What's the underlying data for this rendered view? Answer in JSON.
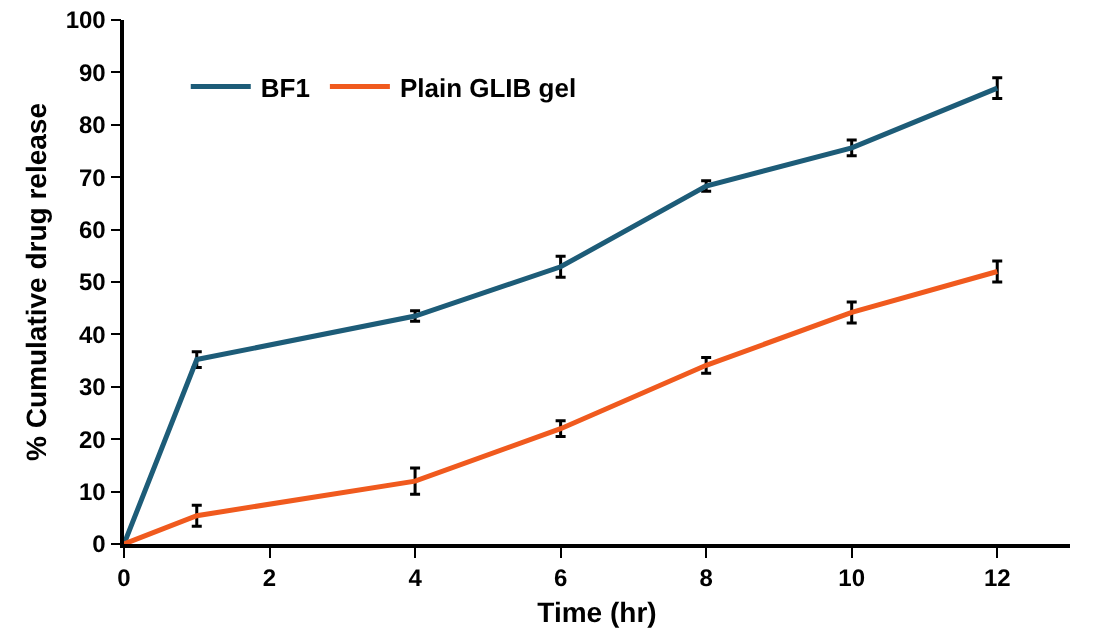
{
  "chart_data": {
    "type": "line",
    "xlabel": "Time (hr)",
    "ylabel": "% Cumulative drug release",
    "x": [
      0,
      1,
      4,
      6,
      8,
      10,
      12
    ],
    "series": [
      {
        "name": "BF1",
        "color": "#1d5c78",
        "values": [
          0,
          35.2,
          43.5,
          52.9,
          68.3,
          75.6,
          87
        ],
        "errors": [
          null,
          1.5,
          1,
          2,
          1,
          1.5,
          2
        ]
      },
      {
        "name": "Plain GLIB gel",
        "color": "#f05a1e",
        "values": [
          0,
          5.4,
          12,
          22,
          34.1,
          44.2,
          52
        ],
        "errors": [
          null,
          2,
          2.5,
          1.5,
          1.5,
          2,
          2
        ]
      }
    ],
    "xlim": [
      0,
      13
    ],
    "xticks": [
      0,
      2,
      4,
      6,
      8,
      10,
      12
    ],
    "ylim": [
      0,
      100
    ],
    "yticks": [
      0,
      10,
      20,
      30,
      40,
      50,
      60,
      70,
      80,
      90,
      100
    ],
    "grid": false,
    "legend": "top left",
    "line_style": "solid"
  }
}
